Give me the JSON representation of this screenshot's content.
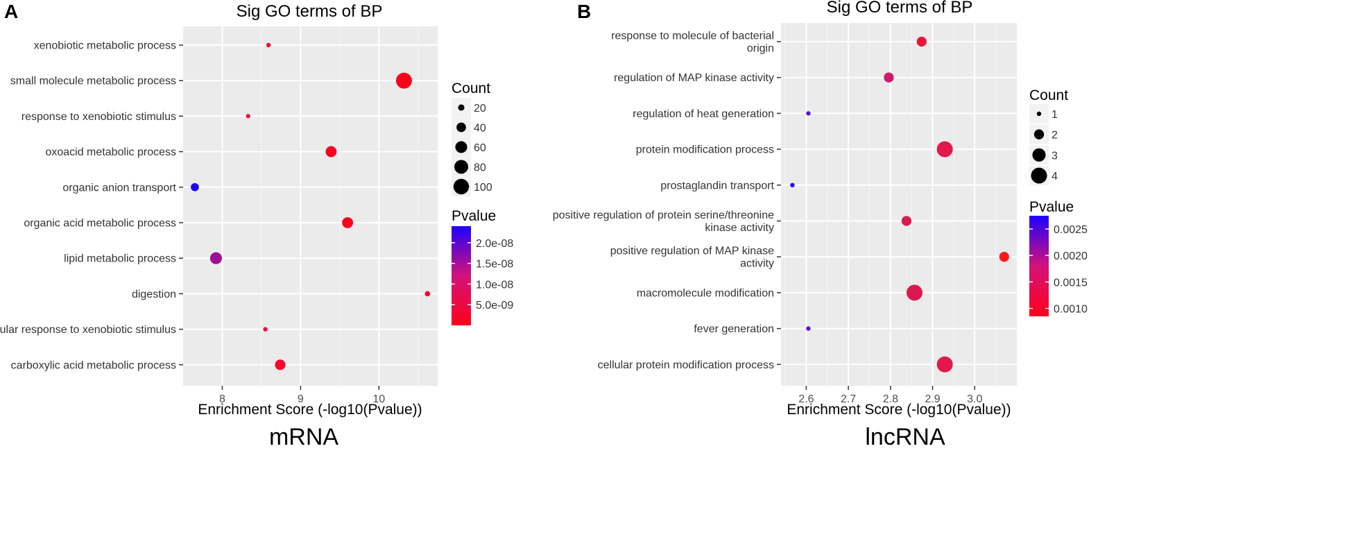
{
  "chart_data": [
    {
      "panel": "A",
      "type": "scatter",
      "title": "Sig GO terms of BP",
      "xlabel": "Enrichment Score (-log10(Pvalue))",
      "ylabel": "",
      "caption": "mRNA",
      "xlim": [
        7.5,
        10.75
      ],
      "xticks": [
        8,
        9,
        10
      ],
      "xtick_labels": [
        "8",
        "9",
        "10"
      ],
      "grid": true,
      "categories": [
        "xenobiotic metabolic process",
        "small molecule metabolic process",
        "response to xenobiotic stimulus",
        "oxoacid metabolic process",
        "organic anion transport",
        "organic acid metabolic process",
        "lipid metabolic process",
        "digestion",
        "cellular response to xenobiotic stimulus",
        "carboxylic acid metabolic process"
      ],
      "points": [
        {
          "term": "xenobiotic metabolic process",
          "x": 8.59,
          "count": 12,
          "pvalue": 2.6e-09,
          "color": "#f20a32"
        },
        {
          "term": "small molecule metabolic process",
          "x": 10.32,
          "count": 105,
          "pvalue": 4.8e-11,
          "color": "#ff0019"
        },
        {
          "term": "response to xenobiotic stimulus",
          "x": 8.33,
          "count": 12,
          "pvalue": 4.7e-09,
          "color": "#e8163e"
        },
        {
          "term": "oxoacid metabolic process",
          "x": 9.39,
          "count": 52,
          "pvalue": 4.1e-10,
          "color": "#fb0220"
        },
        {
          "term": "organic anion transport",
          "x": 7.65,
          "count": 30,
          "pvalue": 2.24e-08,
          "color": "#1a00f4"
        },
        {
          "term": "organic acid metabolic process",
          "x": 9.6,
          "count": 52,
          "pvalue": 2.5e-10,
          "color": "#fc0220"
        },
        {
          "term": "lipid metabolic process",
          "x": 7.92,
          "count": 60,
          "pvalue": 1.2e-08,
          "color": "#a00e98"
        },
        {
          "term": "digestion",
          "x": 10.62,
          "count": 15,
          "pvalue": 2.4e-11,
          "color": "#ff0019"
        },
        {
          "term": "cellular response to xenobiotic stimulus",
          "x": 8.55,
          "count": 12,
          "pvalue": 2.8e-09,
          "color": "#f20a32"
        },
        {
          "term": "carboxylic acid metabolic process",
          "x": 8.74,
          "count": 48,
          "pvalue": 1.8e-09,
          "color": "#f5082c"
        }
      ],
      "legend_count": {
        "title": "Count",
        "values": [
          20,
          40,
          60,
          80,
          100
        ],
        "labels": [
          "20",
          "40",
          "60",
          "80",
          "100"
        ],
        "size_domain": [
          12,
          105
        ]
      },
      "legend_pvalue": {
        "title": "Pvalue",
        "range": [
          0,
          2.4e-08
        ],
        "low_color": "#ff0019",
        "high_color": "#1e00ff",
        "ticks": [
          5e-09,
          1e-08,
          1.5e-08,
          2e-08
        ],
        "labels": [
          "5.0e-09",
          "1.0e-08",
          "1.5e-08",
          "2.0e-08"
        ]
      }
    },
    {
      "panel": "B",
      "type": "scatter",
      "title": "Sig GO terms of BP",
      "xlabel": "Enrichment Score (-log10(Pvalue))",
      "ylabel": "",
      "caption": "lncRNA",
      "xlim": [
        2.54,
        3.1
      ],
      "xticks": [
        2.6,
        2.7,
        2.8,
        2.9,
        3.0
      ],
      "xtick_labels": [
        "2.6",
        "2.7",
        "2.8",
        "2.9",
        "3.0"
      ],
      "grid": true,
      "categories": [
        "response to molecule of bacterial origin",
        "regulation of MAP kinase activity",
        "regulation of heat generation",
        "protein modification process",
        "prostaglandin transport",
        "positive regulation of protein serine/threonine kinase activity",
        "positive regulation of MAP kinase activity",
        "macromolecule modification",
        "fever generation",
        "cellular protein modification process"
      ],
      "category_lines": [
        [
          "response to molecule of bacterial",
          "origin"
        ],
        [
          "regulation of MAP kinase activity"
        ],
        [
          "regulation of heat generation"
        ],
        [
          "protein modification process"
        ],
        [
          "prostaglandin transport"
        ],
        [
          "positive regulation of protein serine/threonine",
          "kinase activity"
        ],
        [
          "positive regulation of MAP kinase",
          "activity"
        ],
        [
          "macromolecule modification"
        ],
        [
          "fever generation"
        ],
        [
          "cellular protein modification process"
        ]
      ],
      "points": [
        {
          "term": "response to molecule of bacterial origin",
          "x": 2.874,
          "count": 2,
          "pvalue": 0.00134,
          "color": "#e8163e"
        },
        {
          "term": "regulation of MAP kinase activity",
          "x": 2.796,
          "count": 2,
          "pvalue": 0.0016,
          "color": "#cc1c6c"
        },
        {
          "term": "regulation of heat generation",
          "x": 2.605,
          "count": 1,
          "pvalue": 0.00248,
          "color": "#5a14d0"
        },
        {
          "term": "protein modification process",
          "x": 2.929,
          "count": 4,
          "pvalue": 0.00118,
          "color": "#e3184a"
        },
        {
          "term": "prostaglandin transport",
          "x": 2.567,
          "count": 1,
          "pvalue": 0.00271,
          "color": "#2a06e8"
        },
        {
          "term": "positive regulation of protein serine/threonine kinase activity",
          "x": 2.838,
          "count": 2,
          "pvalue": 0.00145,
          "color": "#d81a55"
        },
        {
          "term": "positive regulation of MAP kinase activity",
          "x": 3.07,
          "count": 2,
          "pvalue": 0.00085,
          "color": "#ff1a1a"
        },
        {
          "term": "macromolecule modification",
          "x": 2.857,
          "count": 4,
          "pvalue": 0.00139,
          "color": "#dd1850"
        },
        {
          "term": "fever generation",
          "x": 2.605,
          "count": 1,
          "pvalue": 0.00248,
          "color": "#5a14d0"
        },
        {
          "term": "cellular protein modification process",
          "x": 2.929,
          "count": 4,
          "pvalue": 0.00118,
          "color": "#e3184a"
        }
      ],
      "legend_count": {
        "title": "Count",
        "values": [
          1,
          2,
          3,
          4
        ],
        "labels": [
          "1",
          "2",
          "3",
          "4"
        ],
        "size_domain": [
          1,
          4
        ]
      },
      "legend_pvalue": {
        "title": "Pvalue",
        "range": [
          0.00085,
          0.00275
        ],
        "low_color": "#ff0019",
        "high_color": "#1e00ff",
        "ticks": [
          0.001,
          0.0015,
          0.002,
          0.0025
        ],
        "labels": [
          "0.0010",
          "0.0015",
          "0.0020",
          "0.0025"
        ]
      }
    }
  ]
}
